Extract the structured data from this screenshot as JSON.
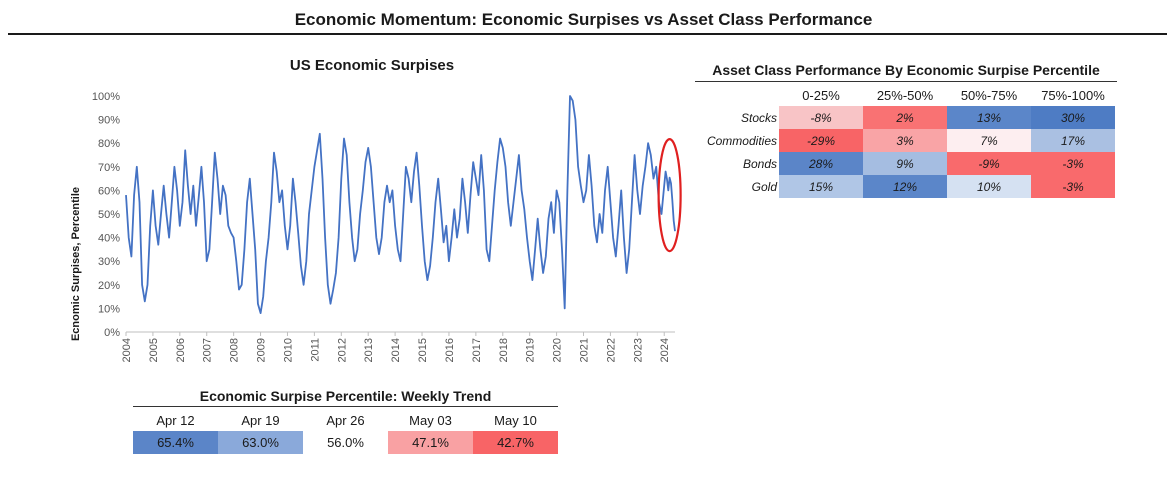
{
  "page_title": "Economic Momentum: Economic Surpises vs Asset Class Performance",
  "chart_data": {
    "type": "line",
    "title": "US Economic Surpises",
    "xlabel": "",
    "ylabel": "Ecnomic Surpises, Percentile",
    "x_range": [
      2004,
      2024.4
    ],
    "ylim": [
      0,
      100
    ],
    "y_ticks": [
      "0%",
      "10%",
      "20%",
      "30%",
      "40%",
      "50%",
      "60%",
      "70%",
      "80%",
      "90%",
      "100%"
    ],
    "x_ticks": [
      "2004",
      "2005",
      "2006",
      "2007",
      "2008",
      "2009",
      "2010",
      "2011",
      "2012",
      "2013",
      "2014",
      "2015",
      "2016",
      "2017",
      "2018",
      "2019",
      "2020",
      "2021",
      "2022",
      "2023",
      "2024"
    ],
    "series": [
      {
        "name": "US Economic Surprise Percentile",
        "color": "#4472c4",
        "points": [
          [
            2004.0,
            58
          ],
          [
            2004.1,
            40
          ],
          [
            2004.2,
            32
          ],
          [
            2004.3,
            58
          ],
          [
            2004.4,
            70
          ],
          [
            2004.5,
            55
          ],
          [
            2004.6,
            20
          ],
          [
            2004.7,
            13
          ],
          [
            2004.8,
            20
          ],
          [
            2004.9,
            45
          ],
          [
            2005.0,
            60
          ],
          [
            2005.1,
            45
          ],
          [
            2005.2,
            37
          ],
          [
            2005.3,
            50
          ],
          [
            2005.4,
            62
          ],
          [
            2005.5,
            50
          ],
          [
            2005.6,
            40
          ],
          [
            2005.7,
            55
          ],
          [
            2005.8,
            70
          ],
          [
            2005.9,
            60
          ],
          [
            2006.0,
            45
          ],
          [
            2006.1,
            55
          ],
          [
            2006.2,
            77
          ],
          [
            2006.3,
            62
          ],
          [
            2006.4,
            50
          ],
          [
            2006.5,
            62
          ],
          [
            2006.6,
            45
          ],
          [
            2006.7,
            57
          ],
          [
            2006.8,
            70
          ],
          [
            2006.9,
            55
          ],
          [
            2007.0,
            30
          ],
          [
            2007.1,
            35
          ],
          [
            2007.2,
            55
          ],
          [
            2007.3,
            76
          ],
          [
            2007.4,
            65
          ],
          [
            2007.5,
            50
          ],
          [
            2007.6,
            62
          ],
          [
            2007.7,
            58
          ],
          [
            2007.8,
            45
          ],
          [
            2007.9,
            42
          ],
          [
            2008.0,
            40
          ],
          [
            2008.1,
            30
          ],
          [
            2008.2,
            18
          ],
          [
            2008.3,
            20
          ],
          [
            2008.4,
            35
          ],
          [
            2008.5,
            55
          ],
          [
            2008.6,
            65
          ],
          [
            2008.7,
            50
          ],
          [
            2008.8,
            35
          ],
          [
            2008.9,
            12
          ],
          [
            2009.0,
            8
          ],
          [
            2009.1,
            15
          ],
          [
            2009.2,
            30
          ],
          [
            2009.3,
            40
          ],
          [
            2009.4,
            55
          ],
          [
            2009.5,
            76
          ],
          [
            2009.6,
            68
          ],
          [
            2009.7,
            55
          ],
          [
            2009.8,
            60
          ],
          [
            2009.9,
            45
          ],
          [
            2010.0,
            35
          ],
          [
            2010.1,
            45
          ],
          [
            2010.2,
            65
          ],
          [
            2010.3,
            55
          ],
          [
            2010.4,
            42
          ],
          [
            2010.5,
            28
          ],
          [
            2010.6,
            20
          ],
          [
            2010.7,
            30
          ],
          [
            2010.8,
            50
          ],
          [
            2010.9,
            60
          ],
          [
            2011.0,
            70
          ],
          [
            2011.1,
            77
          ],
          [
            2011.2,
            84
          ],
          [
            2011.3,
            65
          ],
          [
            2011.4,
            40
          ],
          [
            2011.5,
            20
          ],
          [
            2011.6,
            12
          ],
          [
            2011.7,
            18
          ],
          [
            2011.8,
            25
          ],
          [
            2011.9,
            40
          ],
          [
            2012.0,
            65
          ],
          [
            2012.1,
            82
          ],
          [
            2012.2,
            75
          ],
          [
            2012.3,
            55
          ],
          [
            2012.4,
            40
          ],
          [
            2012.5,
            30
          ],
          [
            2012.6,
            35
          ],
          [
            2012.7,
            50
          ],
          [
            2012.8,
            60
          ],
          [
            2012.9,
            72
          ],
          [
            2013.0,
            78
          ],
          [
            2013.1,
            70
          ],
          [
            2013.2,
            55
          ],
          [
            2013.3,
            40
          ],
          [
            2013.4,
            33
          ],
          [
            2013.5,
            40
          ],
          [
            2013.6,
            55
          ],
          [
            2013.7,
            62
          ],
          [
            2013.8,
            55
          ],
          [
            2013.9,
            60
          ],
          [
            2014.0,
            45
          ],
          [
            2014.1,
            35
          ],
          [
            2014.2,
            30
          ],
          [
            2014.3,
            50
          ],
          [
            2014.4,
            70
          ],
          [
            2014.5,
            65
          ],
          [
            2014.6,
            55
          ],
          [
            2014.7,
            68
          ],
          [
            2014.8,
            76
          ],
          [
            2014.9,
            62
          ],
          [
            2015.0,
            45
          ],
          [
            2015.1,
            30
          ],
          [
            2015.2,
            22
          ],
          [
            2015.3,
            28
          ],
          [
            2015.4,
            40
          ],
          [
            2015.5,
            55
          ],
          [
            2015.6,
            65
          ],
          [
            2015.7,
            52
          ],
          [
            2015.8,
            38
          ],
          [
            2015.9,
            45
          ],
          [
            2016.0,
            30
          ],
          [
            2016.1,
            40
          ],
          [
            2016.2,
            52
          ],
          [
            2016.3,
            40
          ],
          [
            2016.4,
            48
          ],
          [
            2016.5,
            65
          ],
          [
            2016.6,
            55
          ],
          [
            2016.7,
            42
          ],
          [
            2016.8,
            58
          ],
          [
            2016.9,
            72
          ],
          [
            2017.0,
            65
          ],
          [
            2017.1,
            58
          ],
          [
            2017.2,
            75
          ],
          [
            2017.3,
            60
          ],
          [
            2017.4,
            35
          ],
          [
            2017.5,
            30
          ],
          [
            2017.6,
            45
          ],
          [
            2017.7,
            60
          ],
          [
            2017.8,
            72
          ],
          [
            2017.9,
            82
          ],
          [
            2018.0,
            78
          ],
          [
            2018.1,
            70
          ],
          [
            2018.2,
            55
          ],
          [
            2018.3,
            45
          ],
          [
            2018.4,
            55
          ],
          [
            2018.5,
            65
          ],
          [
            2018.6,
            75
          ],
          [
            2018.7,
            60
          ],
          [
            2018.8,
            52
          ],
          [
            2018.9,
            40
          ],
          [
            2019.0,
            30
          ],
          [
            2019.1,
            22
          ],
          [
            2019.2,
            35
          ],
          [
            2019.3,
            48
          ],
          [
            2019.4,
            35
          ],
          [
            2019.5,
            25
          ],
          [
            2019.6,
            32
          ],
          [
            2019.7,
            48
          ],
          [
            2019.8,
            55
          ],
          [
            2019.9,
            42
          ],
          [
            2020.0,
            60
          ],
          [
            2020.1,
            55
          ],
          [
            2020.2,
            35
          ],
          [
            2020.3,
            10
          ],
          [
            2020.4,
            60
          ],
          [
            2020.5,
            100
          ],
          [
            2020.6,
            98
          ],
          [
            2020.7,
            90
          ],
          [
            2020.8,
            70
          ],
          [
            2020.9,
            62
          ],
          [
            2021.0,
            55
          ],
          [
            2021.1,
            60
          ],
          [
            2021.2,
            75
          ],
          [
            2021.3,
            62
          ],
          [
            2021.4,
            45
          ],
          [
            2021.5,
            38
          ],
          [
            2021.6,
            50
          ],
          [
            2021.7,
            42
          ],
          [
            2021.8,
            60
          ],
          [
            2021.9,
            70
          ],
          [
            2022.0,
            55
          ],
          [
            2022.1,
            40
          ],
          [
            2022.2,
            32
          ],
          [
            2022.3,
            45
          ],
          [
            2022.4,
            60
          ],
          [
            2022.5,
            40
          ],
          [
            2022.6,
            25
          ],
          [
            2022.7,
            35
          ],
          [
            2022.8,
            55
          ],
          [
            2022.9,
            75
          ],
          [
            2023.0,
            60
          ],
          [
            2023.1,
            50
          ],
          [
            2023.2,
            62
          ],
          [
            2023.3,
            70
          ],
          [
            2023.4,
            80
          ],
          [
            2023.5,
            75
          ],
          [
            2023.6,
            65
          ],
          [
            2023.7,
            70
          ],
          [
            2023.8,
            55
          ],
          [
            2023.9,
            50
          ],
          [
            2024.0,
            62
          ],
          [
            2024.05,
            68
          ],
          [
            2024.1,
            65
          ],
          [
            2024.15,
            60
          ],
          [
            2024.2,
            65.4
          ],
          [
            2024.25,
            63.0
          ],
          [
            2024.3,
            56.0
          ],
          [
            2024.35,
            47.1
          ],
          [
            2024.4,
            42.7
          ]
        ]
      }
    ],
    "annotation": {
      "type": "ellipse",
      "color": "#e02020",
      "center_year": 2024.2,
      "center_value": 58
    }
  },
  "performance": {
    "title": "Asset Class Performance By Economic Surpise Percentile",
    "columns": [
      "0-25%",
      "25%-50%",
      "50%-75%",
      "75%-100%"
    ],
    "rows": [
      {
        "label": "Stocks",
        "values": [
          "-8%",
          "2%",
          "13%",
          "30%"
        ],
        "colors": [
          "#f8c4c6",
          "#f97273",
          "#5b86c9",
          "#4e7cc4"
        ]
      },
      {
        "label": "Commodities",
        "values": [
          "-29%",
          "3%",
          "7%",
          "17%"
        ],
        "colors": [
          "#f86466",
          "#f9a4a6",
          "#fdeef0",
          "#aac0e2"
        ]
      },
      {
        "label": "Bonds",
        "values": [
          "28%",
          "9%",
          "-9%",
          "-3%"
        ],
        "colors": [
          "#5b85c8",
          "#a5bde1",
          "#f96a6c",
          "#f96a6c"
        ]
      },
      {
        "label": "Gold",
        "values": [
          "15%",
          "12%",
          "10%",
          "-3%"
        ],
        "colors": [
          "#b0c6e6",
          "#5b86c9",
          "#d5e1f2",
          "#f96a6c"
        ]
      }
    ]
  },
  "trend": {
    "title": "Economic Surpise Percentile: Weekly Trend",
    "dates": [
      "Apr 12",
      "Apr 19",
      "Apr 26",
      "May 03",
      "May 10"
    ],
    "values": [
      "65.4%",
      "63.0%",
      "56.0%",
      "47.1%",
      "42.7%"
    ],
    "colors": [
      "#5b85c8",
      "#8aa9da",
      "#ffffff",
      "#f9a1a3",
      "#f86466"
    ]
  }
}
